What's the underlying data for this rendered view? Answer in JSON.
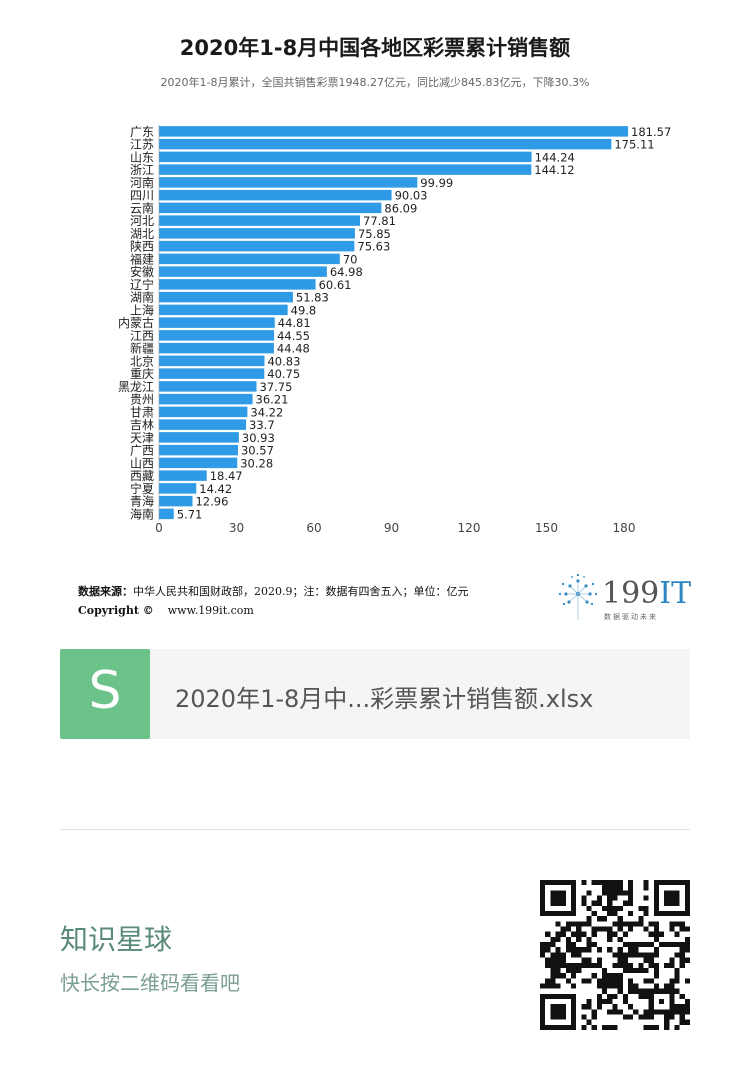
{
  "title": "2020年1-8月中国各地区彩票累计销售额",
  "subtitle": "2020年1-8月累计，全国共销售彩票1948.27亿元，同比减少845.83亿元，下降30.3%",
  "chart_data": {
    "type": "bar",
    "orientation": "horizontal",
    "title": "2020年1-8月中国各地区彩票累计销售额",
    "xlim": [
      0,
      180
    ],
    "xticks": [
      0,
      30,
      60,
      90,
      120,
      150,
      180
    ],
    "bar_color": "#2f9be6",
    "categories": [
      "广东",
      "江苏",
      "山东",
      "浙江",
      "河南",
      "四川",
      "云南",
      "河北",
      "湖北",
      "陕西",
      "福建",
      "安徽",
      "辽宁",
      "湖南",
      "上海",
      "内蒙古",
      "江西",
      "新疆",
      "北京",
      "重庆",
      "黑龙江",
      "贵州",
      "甘肃",
      "吉林",
      "天津",
      "广西",
      "山西",
      "西藏",
      "宁夏",
      "青海",
      "海南"
    ],
    "values": [
      181.57,
      175.11,
      144.24,
      144.12,
      99.99,
      90.03,
      86.09,
      77.81,
      75.85,
      75.63,
      70,
      64.98,
      60.61,
      51.83,
      49.8,
      44.81,
      44.55,
      44.48,
      40.83,
      40.75,
      37.75,
      36.21,
      34.22,
      33.7,
      30.93,
      30.57,
      30.28,
      18.47,
      14.42,
      12.96,
      5.71
    ],
    "unit": "亿元"
  },
  "footer": {
    "source_label": "数据来源：",
    "source_text": "中华人民共和国财政部，2020.9；注：数据有四舍五入；单位：亿元",
    "copyright": "Copyright ©",
    "website": "www.199it.com"
  },
  "logo": {
    "number": "199",
    "it": "IT",
    "tagline": "数据驱动未来"
  },
  "file_card": {
    "icon_letter": "S",
    "filename": "2020年1-8月中...彩票累计销售额.xlsx"
  },
  "promo": {
    "title": "知识星球",
    "subtitle": "快长按二维码看看吧"
  }
}
